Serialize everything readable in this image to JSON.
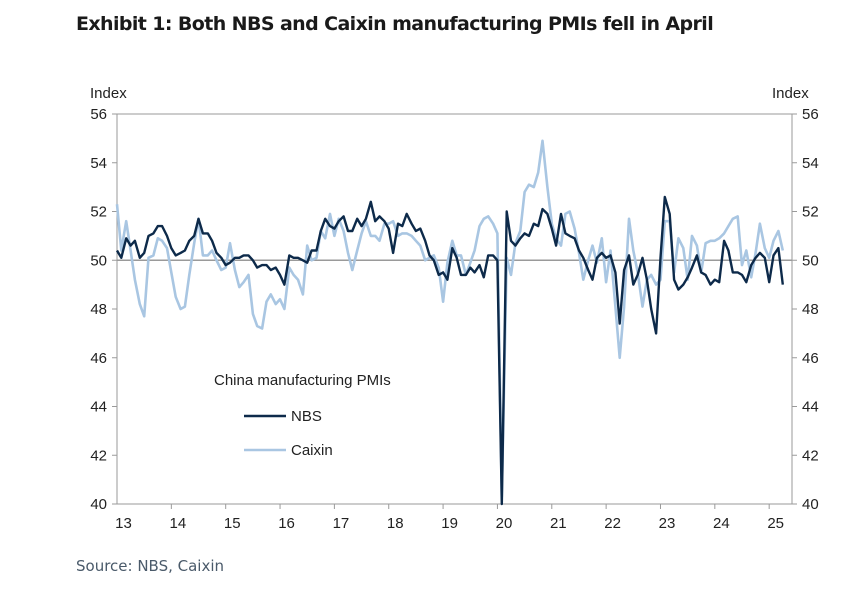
{
  "title": "Exhibit 1: Both NBS and Caixin manufacturing PMIs fell in April",
  "source": "Source: NBS, Caixin",
  "chart_data": {
    "type": "line",
    "ylabel_left": "Index",
    "ylabel_right": "Index",
    "ylim": [
      40,
      56
    ],
    "yticks": [
      "40",
      "42",
      "44",
      "46",
      "48",
      "50",
      "52",
      "54",
      "56"
    ],
    "xticks": [
      "13",
      "14",
      "15",
      "16",
      "17",
      "18",
      "19",
      "20",
      "21",
      "22",
      "23",
      "24",
      "25"
    ],
    "xlim": [
      2013.0,
      2025.42
    ],
    "reference_line": 50,
    "legend": {
      "title": "China  manufacturing  PMIs",
      "placement": "center-left"
    },
    "series": [
      {
        "name": "NBS",
        "color": "#0d2a4a",
        "x": [
          2013.0,
          2013.08,
          2013.17,
          2013.25,
          2013.33,
          2013.42,
          2013.5,
          2013.58,
          2013.67,
          2013.75,
          2013.83,
          2013.92,
          2014.0,
          2014.08,
          2014.17,
          2014.25,
          2014.33,
          2014.42,
          2014.5,
          2014.58,
          2014.67,
          2014.75,
          2014.83,
          2014.92,
          2015.0,
          2015.08,
          2015.17,
          2015.25,
          2015.33,
          2015.42,
          2015.5,
          2015.58,
          2015.67,
          2015.75,
          2015.83,
          2015.92,
          2016.0,
          2016.08,
          2016.17,
          2016.25,
          2016.33,
          2016.42,
          2016.5,
          2016.58,
          2016.67,
          2016.75,
          2016.83,
          2016.92,
          2017.0,
          2017.08,
          2017.17,
          2017.25,
          2017.33,
          2017.42,
          2017.5,
          2017.58,
          2017.67,
          2017.75,
          2017.83,
          2017.92,
          2018.0,
          2018.08,
          2018.17,
          2018.25,
          2018.33,
          2018.42,
          2018.5,
          2018.58,
          2018.67,
          2018.75,
          2018.83,
          2018.92,
          2019.0,
          2019.08,
          2019.17,
          2019.25,
          2019.33,
          2019.42,
          2019.5,
          2019.58,
          2019.67,
          2019.75,
          2019.83,
          2019.92,
          2020.0,
          2020.08,
          2020.17,
          2020.25,
          2020.33,
          2020.42,
          2020.5,
          2020.58,
          2020.67,
          2020.75,
          2020.83,
          2020.92,
          2021.0,
          2021.08,
          2021.17,
          2021.25,
          2021.33,
          2021.42,
          2021.5,
          2021.58,
          2021.67,
          2021.75,
          2021.83,
          2021.92,
          2022.0,
          2022.08,
          2022.17,
          2022.25,
          2022.33,
          2022.42,
          2022.5,
          2022.58,
          2022.67,
          2022.75,
          2022.83,
          2022.92,
          2023.0,
          2023.08,
          2023.17,
          2023.25,
          2023.33,
          2023.42,
          2023.5,
          2023.58,
          2023.67,
          2023.75,
          2023.83,
          2023.92,
          2024.0,
          2024.08,
          2024.17,
          2024.25,
          2024.33,
          2024.42,
          2024.5,
          2024.58,
          2024.67,
          2024.75,
          2024.83,
          2024.92,
          2025.0,
          2025.08,
          2025.17,
          2025.25
        ],
        "values": [
          50.4,
          50.1,
          50.9,
          50.6,
          50.8,
          50.1,
          50.3,
          51.0,
          51.1,
          51.4,
          51.4,
          51.0,
          50.5,
          50.2,
          50.3,
          50.4,
          50.8,
          51.0,
          51.7,
          51.1,
          51.1,
          50.8,
          50.3,
          50.1,
          49.8,
          49.9,
          50.1,
          50.1,
          50.2,
          50.2,
          50.0,
          49.7,
          49.8,
          49.8,
          49.6,
          49.7,
          49.4,
          49.0,
          50.2,
          50.1,
          50.1,
          50.0,
          49.9,
          50.4,
          50.4,
          51.2,
          51.7,
          51.4,
          51.3,
          51.6,
          51.8,
          51.2,
          51.2,
          51.7,
          51.4,
          51.7,
          52.4,
          51.6,
          51.8,
          51.6,
          51.3,
          50.3,
          51.5,
          51.4,
          51.9,
          51.5,
          51.2,
          51.3,
          50.8,
          50.2,
          50.0,
          49.4,
          49.5,
          49.2,
          50.5,
          50.1,
          49.4,
          49.4,
          49.7,
          49.5,
          49.8,
          49.3,
          50.2,
          50.2,
          50.0,
          35.7,
          52.0,
          50.8,
          50.6,
          50.9,
          51.1,
          51.0,
          51.5,
          51.4,
          52.1,
          51.9,
          51.3,
          50.6,
          51.9,
          51.1,
          51.0,
          50.9,
          50.4,
          50.1,
          49.6,
          49.2,
          50.1,
          50.3,
          50.1,
          50.2,
          49.5,
          47.4,
          49.6,
          50.2,
          49.0,
          49.4,
          50.1,
          49.2,
          48.0,
          47.0,
          50.1,
          52.6,
          51.9,
          49.2,
          48.8,
          49.0,
          49.3,
          49.7,
          50.2,
          49.5,
          49.4,
          49.0,
          49.2,
          49.1,
          50.8,
          50.4,
          49.5,
          49.5,
          49.4,
          49.1,
          49.8,
          50.1,
          50.3,
          50.1,
          49.1,
          50.2,
          50.5,
          49.0
        ]
      },
      {
        "name": "Caixin",
        "color": "#a9c6e2",
        "x": [
          2013.0,
          2013.08,
          2013.17,
          2013.25,
          2013.33,
          2013.42,
          2013.5,
          2013.58,
          2013.67,
          2013.75,
          2013.83,
          2013.92,
          2014.0,
          2014.08,
          2014.17,
          2014.25,
          2014.33,
          2014.42,
          2014.5,
          2014.58,
          2014.67,
          2014.75,
          2014.83,
          2014.92,
          2015.0,
          2015.08,
          2015.17,
          2015.25,
          2015.33,
          2015.42,
          2015.5,
          2015.58,
          2015.67,
          2015.75,
          2015.83,
          2015.92,
          2016.0,
          2016.08,
          2016.17,
          2016.25,
          2016.33,
          2016.42,
          2016.5,
          2016.58,
          2016.67,
          2016.75,
          2016.83,
          2016.92,
          2017.0,
          2017.08,
          2017.17,
          2017.25,
          2017.33,
          2017.42,
          2017.5,
          2017.58,
          2017.67,
          2017.75,
          2017.83,
          2017.92,
          2018.0,
          2018.08,
          2018.17,
          2018.25,
          2018.33,
          2018.42,
          2018.5,
          2018.58,
          2018.67,
          2018.75,
          2018.83,
          2018.92,
          2019.0,
          2019.08,
          2019.17,
          2019.25,
          2019.33,
          2019.42,
          2019.5,
          2019.58,
          2019.67,
          2019.75,
          2019.83,
          2019.92,
          2020.0,
          2020.08,
          2020.17,
          2020.25,
          2020.33,
          2020.42,
          2020.5,
          2020.58,
          2020.67,
          2020.75,
          2020.83,
          2020.92,
          2021.0,
          2021.08,
          2021.17,
          2021.25,
          2021.33,
          2021.42,
          2021.5,
          2021.58,
          2021.67,
          2021.75,
          2021.83,
          2021.92,
          2022.0,
          2022.08,
          2022.17,
          2022.25,
          2022.33,
          2022.42,
          2022.5,
          2022.58,
          2022.67,
          2022.75,
          2022.83,
          2022.92,
          2023.0,
          2023.08,
          2023.17,
          2023.25,
          2023.33,
          2023.42,
          2023.5,
          2023.58,
          2023.67,
          2023.75,
          2023.83,
          2023.92,
          2024.0,
          2024.08,
          2024.17,
          2024.25,
          2024.33,
          2024.42,
          2024.5,
          2024.58,
          2024.67,
          2024.75,
          2024.83,
          2024.92,
          2025.0,
          2025.08,
          2025.17,
          2025.25
        ],
        "values": [
          52.3,
          50.4,
          51.6,
          50.4,
          49.2,
          48.2,
          47.7,
          50.1,
          50.2,
          50.9,
          50.8,
          50.5,
          49.5,
          48.5,
          48.0,
          48.1,
          49.4,
          50.7,
          51.7,
          50.2,
          50.2,
          50.4,
          50.0,
          49.6,
          49.7,
          50.7,
          49.6,
          48.9,
          49.1,
          49.4,
          47.8,
          47.3,
          47.2,
          48.3,
          48.6,
          48.2,
          48.4,
          48.0,
          49.7,
          49.4,
          49.2,
          48.6,
          50.6,
          50.0,
          50.1,
          51.2,
          50.9,
          51.9,
          51.0,
          51.7,
          51.2,
          50.3,
          49.6,
          50.4,
          51.1,
          51.6,
          51.0,
          51.0,
          50.8,
          51.5,
          51.5,
          51.6,
          51.0,
          51.1,
          51.1,
          51.0,
          50.8,
          50.6,
          50.0,
          50.1,
          50.2,
          49.7,
          48.3,
          49.9,
          50.8,
          50.2,
          50.2,
          49.4,
          49.9,
          50.4,
          51.4,
          51.7,
          51.8,
          51.5,
          51.1,
          40.3,
          50.1,
          49.4,
          50.7,
          51.2,
          52.8,
          53.1,
          53.0,
          53.6,
          54.9,
          53.0,
          51.5,
          50.9,
          50.6,
          51.9,
          52.0,
          51.3,
          50.3,
          49.2,
          50.0,
          50.6,
          49.9,
          50.9,
          49.1,
          50.4,
          48.1,
          46.0,
          48.1,
          51.7,
          50.4,
          49.5,
          48.1,
          49.2,
          49.4,
          49.0,
          49.2,
          51.6,
          51.6,
          49.5,
          50.9,
          50.5,
          49.2,
          51.0,
          50.6,
          49.5,
          50.7,
          50.8,
          50.8,
          50.9,
          51.1,
          51.4,
          51.7,
          51.8,
          49.8,
          50.4,
          49.3,
          50.3,
          51.5,
          50.5,
          50.1,
          50.8,
          51.2,
          50.4
        ]
      }
    ]
  }
}
